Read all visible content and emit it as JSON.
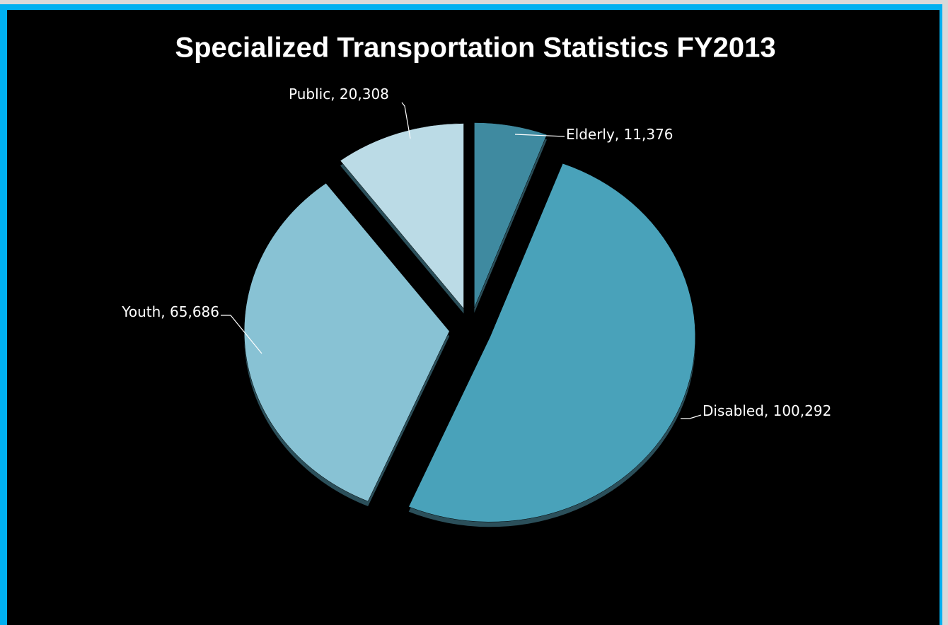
{
  "chart_data": {
    "type": "pie",
    "title": "Specialized Transportation Statistics FY2013",
    "categories": [
      "Elderly",
      "Disabled",
      "Youth",
      "Public"
    ],
    "values": [
      11376,
      100292,
      65686,
      20308
    ],
    "value_labels": [
      "11,376",
      "100,292",
      "65,686",
      "20,308"
    ],
    "label_separator": ", ",
    "colors": [
      "#3f8aa0",
      "#49a2ba",
      "#88c2d4",
      "#bbdbe6"
    ]
  }
}
